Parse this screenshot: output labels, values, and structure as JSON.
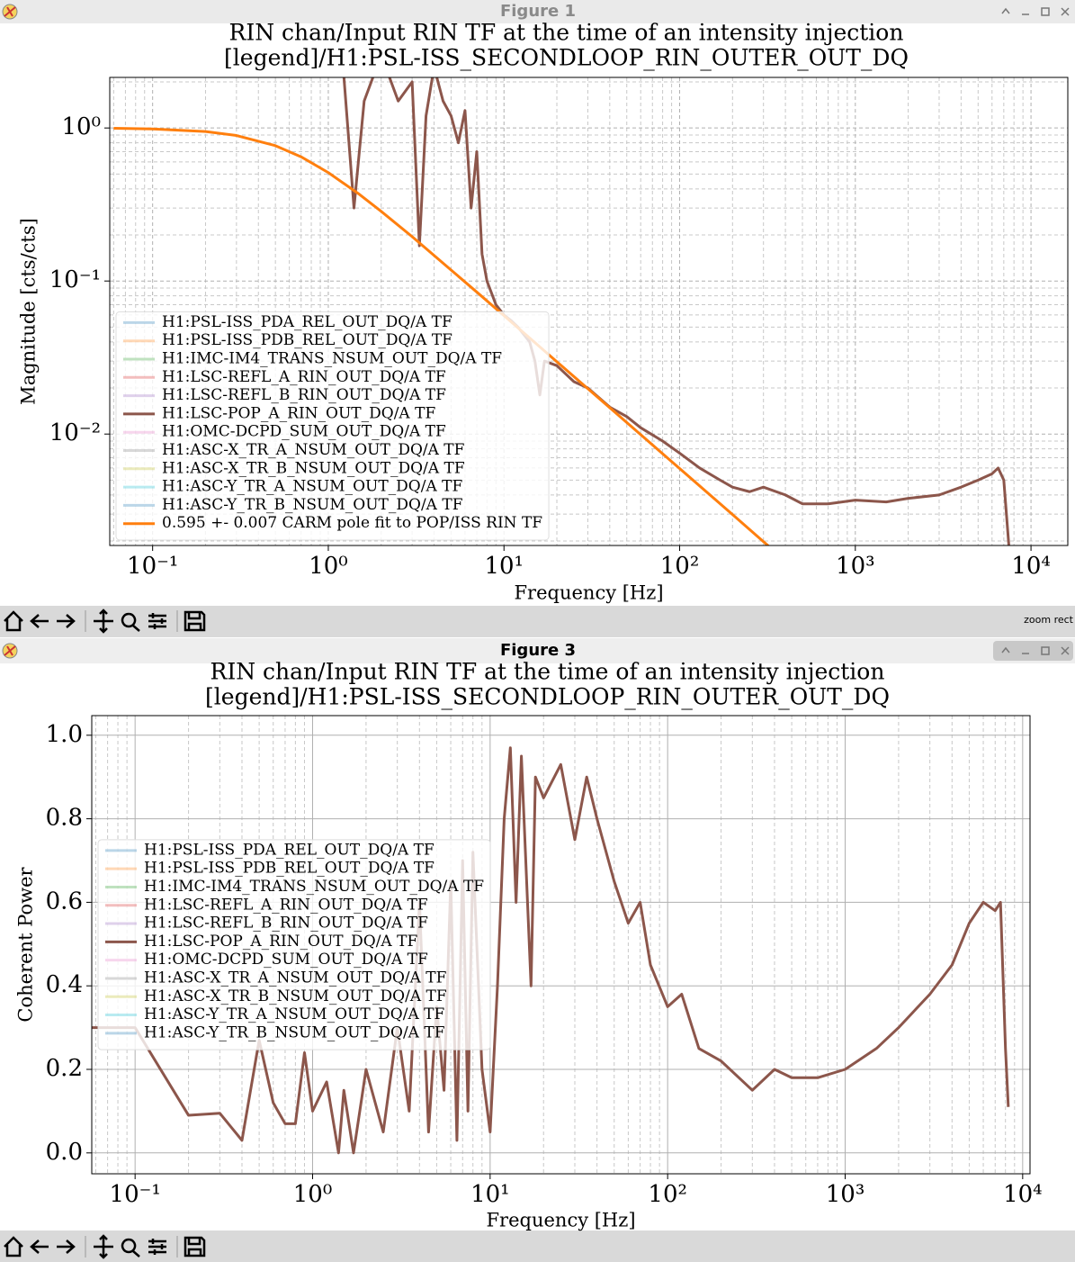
{
  "windows": [
    {
      "title": "Figure 1",
      "status": "zoom rect"
    },
    {
      "title": "Figure 3"
    }
  ],
  "chart_data": [
    {
      "type": "line",
      "title": [
        "RIN chan/Input RIN TF at the time of an intensity injection",
        "[legend]/H1:PSL-ISS_SECONDLOOP_RIN_OUTER_OUT_DQ"
      ],
      "x_label": "Frequency [Hz]",
      "y_label": "Magnitude [cts/cts]",
      "xscale": "log",
      "yscale": "log",
      "xlim": [
        0.057,
        16200
      ],
      "ylim": [
        0.00187,
        2.14
      ],
      "xticks": [
        {
          "value": 0.1,
          "label": "10⁻¹"
        },
        {
          "value": 1,
          "label": "10⁰"
        },
        {
          "value": 10,
          "label": "10¹"
        },
        {
          "value": 100,
          "label": "10²"
        },
        {
          "value": 1000,
          "label": "10³"
        },
        {
          "value": 10000,
          "label": "10⁴"
        }
      ],
      "yticks": [
        {
          "value": 0.01,
          "label": "10⁻²"
        },
        {
          "value": 0.1,
          "label": "10⁻¹"
        },
        {
          "value": 1,
          "label": "10⁰"
        }
      ],
      "grid": true,
      "minor_grid": true,
      "grid_linestyle": "dashed",
      "legend": "lower left",
      "series": [
        {
          "name": "H1:PSL-ISS_PDA_REL_OUT_DQ/A TF",
          "color": "#1f77b4",
          "opacity": 0.3,
          "x": [],
          "values": []
        },
        {
          "name": "H1:PSL-ISS_PDB_REL_OUT_DQ/A TF",
          "color": "#ff7f0e",
          "opacity": 0.3,
          "x": [],
          "values": []
        },
        {
          "name": "H1:IMC-IM4_TRANS_NSUM_OUT_DQ/A TF",
          "color": "#2ca02c",
          "opacity": 0.3,
          "x": [],
          "values": []
        },
        {
          "name": "H1:LSC-REFL_A_RIN_OUT_DQ/A TF",
          "color": "#d62728",
          "opacity": 0.3,
          "x": [],
          "values": []
        },
        {
          "name": "H1:LSC-REFL_B_RIN_OUT_DQ/A TF",
          "color": "#9467bd",
          "opacity": 0.3,
          "x": [],
          "values": []
        },
        {
          "name": "H1:LSC-POP_A_RIN_OUT_DQ/A TF",
          "color": "#8c564b",
          "opacity": 1,
          "x": [
            1.2,
            1.4,
            1.6,
            2,
            2.5,
            3,
            3.3,
            3.6,
            4,
            4.5,
            5,
            5.5,
            6,
            6.5,
            7,
            7.5,
            8,
            9,
            10,
            11,
            12,
            14,
            15,
            16,
            17,
            20,
            25,
            30,
            40,
            50,
            60,
            80,
            100,
            130,
            170,
            200,
            250,
            300,
            400,
            500,
            700,
            1000,
            1500,
            2000,
            3000,
            4000,
            5000,
            6000,
            6500,
            7000,
            7500
          ],
          "values": [
            3,
            0.3,
            1.5,
            3,
            1.5,
            2,
            0.17,
            1.2,
            2.5,
            1.5,
            1.2,
            0.8,
            1.3,
            0.3,
            0.7,
            0.15,
            0.1,
            0.07,
            0.06,
            0.055,
            0.05,
            0.04,
            0.03,
            0.018,
            0.03,
            0.028,
            0.022,
            0.02,
            0.015,
            0.013,
            0.011,
            0.009,
            0.0075,
            0.006,
            0.005,
            0.0045,
            0.0042,
            0.0045,
            0.004,
            0.0035,
            0.0035,
            0.0037,
            0.0036,
            0.0038,
            0.004,
            0.0045,
            0.005,
            0.0055,
            0.006,
            0.005,
            0.0018
          ]
        },
        {
          "name": "H1:OMC-DCPD_SUM_OUT_DQ/A TF",
          "color": "#e377c2",
          "opacity": 0.3,
          "x": [],
          "values": []
        },
        {
          "name": "H1:ASC-X_TR_A_NSUM_OUT_DQ/A TF",
          "color": "#7f7f7f",
          "opacity": 0.3,
          "x": [],
          "values": []
        },
        {
          "name": "H1:ASC-X_TR_B_NSUM_OUT_DQ/A TF",
          "color": "#bcbd22",
          "opacity": 0.3,
          "x": [],
          "values": []
        },
        {
          "name": "H1:ASC-Y_TR_A_NSUM_OUT_DQ/A TF",
          "color": "#17becf",
          "opacity": 0.3,
          "x": [],
          "values": []
        },
        {
          "name": "H1:ASC-Y_TR_B_NSUM_OUT_DQ/A TF",
          "color": "#1f77b4",
          "opacity": 0.3,
          "x": [],
          "values": []
        },
        {
          "name": "0.595 +- 0.007 CARM pole fit to POP/ISS RIN TF",
          "color": "#ff7f0e",
          "opacity": 1,
          "x": [
            0.06,
            0.1,
            0.2,
            0.3,
            0.5,
            0.7,
            1,
            1.5,
            2,
            3,
            5,
            7,
            10,
            20,
            30,
            50,
            100,
            200,
            300,
            350
          ],
          "values": [
            0.995,
            0.986,
            0.948,
            0.893,
            0.766,
            0.648,
            0.511,
            0.369,
            0.285,
            0.195,
            0.118,
            0.0847,
            0.0594,
            0.0297,
            0.0198,
            0.0119,
            0.00595,
            0.00298,
            0.00198,
            0.0017
          ]
        }
      ]
    },
    {
      "type": "line",
      "title": [
        "RIN chan/Input RIN TF at the time of an intensity injection",
        "[legend]/H1:PSL-ISS_SECONDLOOP_RIN_OUTER_OUT_DQ"
      ],
      "x_label": "Frequency [Hz]",
      "y_label": "Coherent Power",
      "xscale": "log",
      "yscale": "linear",
      "xlim": [
        0.057,
        11000
      ],
      "ylim": [
        -0.05,
        1.047
      ],
      "xticks": [
        {
          "value": 0.1,
          "label": "10⁻¹"
        },
        {
          "value": 1,
          "label": "10⁰"
        },
        {
          "value": 10,
          "label": "10¹"
        },
        {
          "value": 100,
          "label": "10²"
        },
        {
          "value": 1000,
          "label": "10³"
        },
        {
          "value": 10000,
          "label": "10⁴"
        }
      ],
      "yticks": [
        {
          "value": 0,
          "label": "0.0"
        },
        0.2,
        0.4,
        0.6,
        0.8,
        {
          "value": 1,
          "label": "1.0"
        }
      ],
      "grid": true,
      "minor_grid": true,
      "grid_linestyle": "solid",
      "legend": "center left",
      "series": [
        {
          "name": "H1:PSL-ISS_PDA_REL_OUT_DQ/A TF",
          "color": "#1f77b4",
          "opacity": 0.3,
          "x": [],
          "values": []
        },
        {
          "name": "H1:PSL-ISS_PDB_REL_OUT_DQ/A TF",
          "color": "#ff7f0e",
          "opacity": 0.3,
          "x": [],
          "values": []
        },
        {
          "name": "H1:IMC-IM4_TRANS_NSUM_OUT_DQ/A TF",
          "color": "#2ca02c",
          "opacity": 0.3,
          "x": [],
          "values": []
        },
        {
          "name": "H1:LSC-REFL_A_RIN_OUT_DQ/A TF",
          "color": "#d62728",
          "opacity": 0.3,
          "x": [],
          "values": []
        },
        {
          "name": "H1:LSC-REFL_B_RIN_OUT_DQ/A TF",
          "color": "#9467bd",
          "opacity": 0.3,
          "x": [],
          "values": []
        },
        {
          "name": "H1:LSC-POP_A_RIN_OUT_DQ/A TF",
          "color": "#8c564b",
          "opacity": 1,
          "x": [
            0.05,
            0.1,
            0.2,
            0.3,
            0.4,
            0.5,
            0.6,
            0.7,
            0.8,
            0.9,
            1.0,
            1.2,
            1.4,
            1.5,
            1.7,
            2,
            2.5,
            3,
            3.5,
            4,
            4.5,
            5,
            5.5,
            6,
            6.5,
            7,
            7.5,
            8,
            9,
            10,
            11,
            12,
            13,
            14,
            15,
            17,
            18,
            20,
            25,
            30,
            35,
            40,
            50,
            60,
            70,
            80,
            100,
            120,
            150,
            200,
            300,
            400,
            500,
            700,
            1000,
            1500,
            2000,
            3000,
            4000,
            5000,
            6000,
            7000,
            7500,
            8000,
            8300
          ],
          "values": [
            0.3,
            0.3,
            0.09,
            0.095,
            0.03,
            0.27,
            0.12,
            0.07,
            0.07,
            0.24,
            0.1,
            0.17,
            0.0,
            0.15,
            0.0,
            0.2,
            0.05,
            0.3,
            0.1,
            0.6,
            0.05,
            0.35,
            0.15,
            0.65,
            0.03,
            0.7,
            0.1,
            0.72,
            0.2,
            0.05,
            0.4,
            0.8,
            0.97,
            0.6,
            0.95,
            0.4,
            0.9,
            0.85,
            0.93,
            0.75,
            0.9,
            0.8,
            0.65,
            0.55,
            0.6,
            0.45,
            0.35,
            0.38,
            0.25,
            0.22,
            0.15,
            0.2,
            0.18,
            0.18,
            0.2,
            0.25,
            0.3,
            0.38,
            0.45,
            0.55,
            0.6,
            0.58,
            0.6,
            0.25,
            0.11
          ]
        },
        {
          "name": "H1:OMC-DCPD_SUM_OUT_DQ/A TF",
          "color": "#e377c2",
          "opacity": 0.3,
          "x": [],
          "values": []
        },
        {
          "name": "H1:ASC-X_TR_A_NSUM_OUT_DQ/A TF",
          "color": "#7f7f7f",
          "opacity": 0.3,
          "x": [],
          "values": []
        },
        {
          "name": "H1:ASC-X_TR_B_NSUM_OUT_DQ/A TF",
          "color": "#bcbd22",
          "opacity": 0.3,
          "x": [],
          "values": []
        },
        {
          "name": "H1:ASC-Y_TR_A_NSUM_OUT_DQ/A TF",
          "color": "#17becf",
          "opacity": 0.3,
          "x": [],
          "values": []
        },
        {
          "name": "H1:ASC-Y_TR_B_NSUM_OUT_DQ/A TF",
          "color": "#1f77b4",
          "opacity": 0.3,
          "x": [],
          "values": []
        }
      ]
    }
  ]
}
